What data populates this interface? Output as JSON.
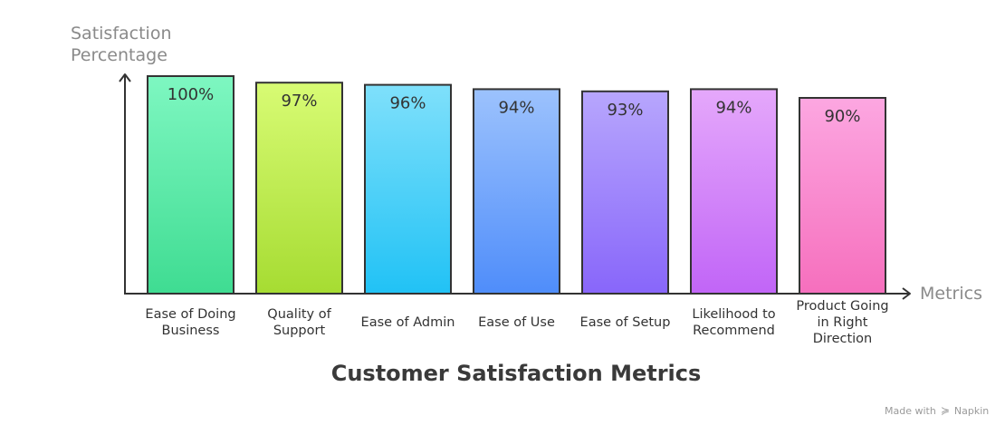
{
  "chart_data": {
    "type": "bar",
    "title": "Customer Satisfaction Metrics",
    "ylabel": [
      "Satisfaction",
      "Percentage"
    ],
    "xlabel": "Metrics",
    "ylim": [
      0,
      100
    ],
    "grid": false,
    "categories": [
      [
        "Ease of Doing",
        "Business"
      ],
      [
        "Quality of",
        "Support"
      ],
      [
        "Ease of Admin"
      ],
      [
        "Ease of Use"
      ],
      [
        "Ease of Setup"
      ],
      [
        "Likelihood to",
        "Recommend"
      ],
      [
        "Product Going",
        "in Right",
        "Direction"
      ]
    ],
    "values": [
      100,
      97,
      96,
      94,
      93,
      94,
      90
    ],
    "value_labels": [
      "100%",
      "97%",
      "96%",
      "94%",
      "93%",
      "94%",
      "90%"
    ],
    "bar_gradients": [
      [
        "#7ef7c1",
        "#3fdc92"
      ],
      [
        "#d8fb74",
        "#a6dc32"
      ],
      [
        "#7fe0fb",
        "#21c2f5"
      ],
      [
        "#9cc2fd",
        "#4f8dfa"
      ],
      [
        "#b7a6fd",
        "#8866fa"
      ],
      [
        "#e5a8fb",
        "#c165f7"
      ],
      [
        "#fca7e1",
        "#f66fbd"
      ]
    ]
  },
  "footer": {
    "made_with": "Made with",
    "brand": "Napkin",
    "brand_icon": "napkin-logo-icon"
  }
}
